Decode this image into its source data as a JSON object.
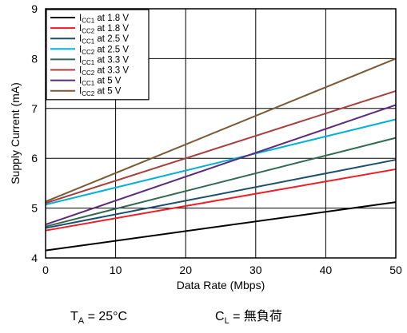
{
  "chart_data": {
    "type": "line",
    "xlabel": "Data Rate (Mbps)",
    "ylabel": "Supply Current (mA)",
    "xlim": [
      0,
      50
    ],
    "ylim": [
      4,
      9
    ],
    "x_ticks": [
      "0",
      "10",
      "20",
      "30",
      "40",
      "50"
    ],
    "y_ticks": [
      "4",
      "5",
      "6",
      "7",
      "8",
      "9"
    ],
    "grid": true,
    "legend_position": "top-left",
    "x": [
      0,
      50
    ],
    "series": [
      {
        "name_main": "I",
        "name_sub": "CC1",
        "name_rest": " at 1.8 V",
        "color": "#000000",
        "values": [
          4.15,
          5.12
        ]
      },
      {
        "name_main": "I",
        "name_sub": "CC2",
        "name_rest": " at 1.8 V",
        "color": "#ee1c24",
        "values": [
          4.55,
          5.78
        ]
      },
      {
        "name_main": "I",
        "name_sub": "CC1",
        "name_rest": " at 2.5 V",
        "color": "#1b4f6e",
        "values": [
          4.6,
          5.97
        ]
      },
      {
        "name_main": "I",
        "name_sub": "CC2",
        "name_rest": " at 2.5 V",
        "color": "#00b0d8",
        "values": [
          5.07,
          6.78
        ]
      },
      {
        "name_main": "I",
        "name_sub": "CC1",
        "name_rest": " at 3.3 V",
        "color": "#2e6b4f",
        "values": [
          4.63,
          6.41
        ]
      },
      {
        "name_main": "I",
        "name_sub": "CC2",
        "name_rest": " at 3.3 V",
        "color": "#a83f3c",
        "values": [
          5.1,
          7.35
        ]
      },
      {
        "name_main": "I",
        "name_sub": "CC1",
        "name_rest": " at 5 V",
        "color": "#5b2a7c",
        "values": [
          4.67,
          7.07
        ]
      },
      {
        "name_main": "I",
        "name_sub": "CC2",
        "name_rest": " at 5 V",
        "color": "#7a5a34",
        "values": [
          5.13,
          8.0
        ]
      }
    ]
  },
  "footer": {
    "ta_main": "T",
    "ta_sub": "A",
    "ta_rest": " = 25°C",
    "cl_main": "C",
    "cl_sub": "L",
    "cl_rest": " = 無負荷"
  }
}
